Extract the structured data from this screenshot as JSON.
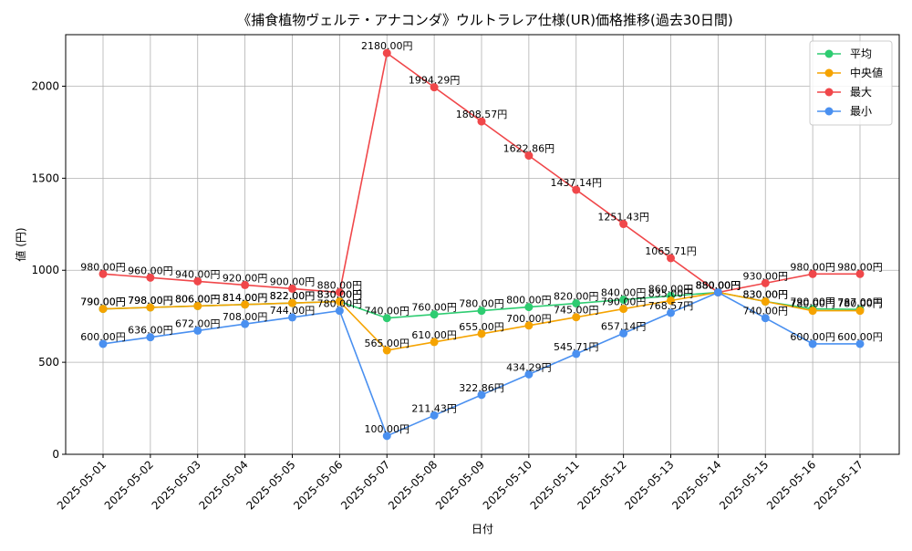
{
  "chart_data": {
    "type": "line",
    "title": "《捕食植物ヴェルテ・アナコンダ》ウルトラレア仕様(UR)価格推移(過去30日間)",
    "xlabel": "日付",
    "ylabel": "値 (円)",
    "x": [
      "2025-05-01",
      "2025-05-02",
      "2025-05-03",
      "2025-05-04",
      "2025-05-05",
      "2025-05-06",
      "2025-05-07",
      "2025-05-08",
      "2025-05-09",
      "2025-05-10",
      "2025-05-11",
      "2025-05-12",
      "2025-05-13",
      "2025-05-14",
      "2025-05-15",
      "2025-05-16",
      "2025-05-17"
    ],
    "ylim": [
      0,
      2280
    ],
    "yticks": [
      0,
      500,
      1000,
      1500,
      2000
    ],
    "grid": true,
    "legend_position": "top-right",
    "value_suffix": "円",
    "series": [
      {
        "name": "平均",
        "color": "#2ecc71",
        "values": [
          790,
          798,
          806,
          814,
          822,
          830,
          740,
          760,
          780,
          800,
          820,
          840,
          860,
          880,
          830,
          790,
          787
        ],
        "labels": [
          "790.00円",
          "798.00円",
          "806.00円",
          "814.00円",
          "822.00円",
          "830.00円",
          "740.00円",
          "760.00円",
          "780.00円",
          "800.00円",
          "820.00円",
          "840.00円",
          "860.00円",
          "880.00円",
          "830.00円",
          "790.00円",
          "787.00円"
        ]
      },
      {
        "name": "中央値",
        "color": "#f5a300",
        "values": [
          790,
          798,
          806,
          814,
          822,
          830,
          565,
          610,
          655,
          700,
          745,
          790,
          835,
          880,
          830,
          780,
          780
        ],
        "labels": [
          "790.00円",
          "798.00円",
          "806.00円",
          "814.00円",
          "822.00円",
          "830.00円",
          "565.00円",
          "610.00円",
          "655.00円",
          "700.00円",
          "745.00円",
          "790.00円",
          "835.00円",
          "880.00円",
          "830.00円",
          "780.00円",
          "780.00円"
        ]
      },
      {
        "name": "最大",
        "color": "#f0474a",
        "values": [
          980,
          960,
          940,
          920,
          900,
          880,
          2180,
          1994.29,
          1808.57,
          1622.86,
          1437.14,
          1251.43,
          1065.71,
          880,
          930,
          980,
          980
        ],
        "labels": [
          "980.00円",
          "960.00円",
          "940.00円",
          "920.00円",
          "900.00円",
          "880.00円",
          "2180.00円",
          "1994.29円",
          "1808.57円",
          "1622.86円",
          "1437.14円",
          "1251.43円",
          "1065.71円",
          "880.00円",
          "930.00円",
          "980.00円",
          "980.00円"
        ]
      },
      {
        "name": "最小",
        "color": "#4a90f0",
        "values": [
          600,
          636,
          672,
          708,
          744,
          780,
          100,
          211.43,
          322.86,
          434.29,
          545.71,
          657.14,
          768.57,
          880,
          740,
          600,
          600
        ],
        "labels": [
          "600.00円",
          "636.00円",
          "672.00円",
          "708.00円",
          "744.00円",
          "780.00円",
          "100.00円",
          "211.43円",
          "322.86円",
          "434.29円",
          "545.71円",
          "657.14円",
          "768.57円",
          "880.00円",
          "740.00円",
          "600.00円",
          "600.00円"
        ]
      }
    ]
  }
}
